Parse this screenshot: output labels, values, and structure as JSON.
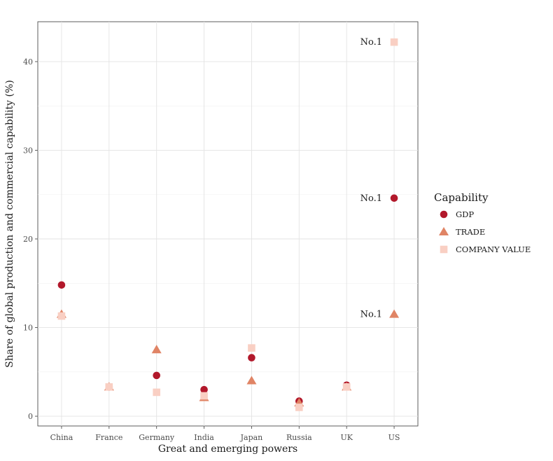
{
  "chart_data": {
    "type": "scatter",
    "categories": [
      "China",
      "France",
      "Germany",
      "India",
      "Japan",
      "Russia",
      "UK",
      "US"
    ],
    "series": [
      {
        "name": "GDP",
        "shape": "circle",
        "color": "#b2182b",
        "values": [
          14.8,
          3.3,
          4.6,
          3.0,
          6.6,
          1.7,
          3.5,
          24.6
        ]
      },
      {
        "name": "TRADE",
        "shape": "triangle",
        "color": "#e08465",
        "values": [
          11.5,
          3.3,
          7.5,
          2.1,
          4.0,
          1.5,
          3.3,
          11.5
        ]
      },
      {
        "name": "COMPANY VALUE",
        "shape": "square",
        "color": "#f9cfc3",
        "values": [
          11.3,
          3.3,
          2.7,
          2.3,
          7.7,
          1.0,
          3.3,
          42.2
        ]
      }
    ],
    "xlabel": "Great and emerging powers",
    "ylabel": "Share of global production and commercial capability (%)",
    "ylim": [
      -1.1,
      44.5
    ],
    "yticks": [
      0,
      10,
      20,
      30,
      40
    ],
    "grid": true,
    "legend": {
      "title": "Capability",
      "placement": "right"
    },
    "annotations": [
      {
        "text": "No.1",
        "category": "US",
        "series": "COMPANY VALUE"
      },
      {
        "text": "No.1",
        "category": "US",
        "series": "GDP"
      },
      {
        "text": "No.1",
        "category": "US",
        "series": "TRADE"
      }
    ]
  }
}
